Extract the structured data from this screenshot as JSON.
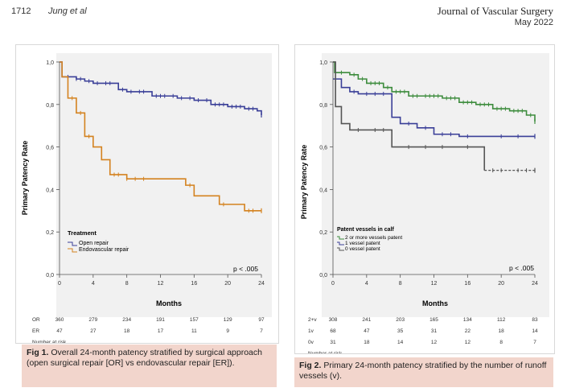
{
  "header": {
    "page_number": "1712",
    "authors": "Jung et al",
    "journal": "Journal of Vascular Surgery",
    "date": "May 2022"
  },
  "figure1": {
    "caption_label": "Fig 1.",
    "caption_text": "Overall 24-month patency stratified by surgical approach (open surgical repair [OR] vs endovascular repair [ER]).",
    "number_at_risk_label": "Number at risk",
    "risk_rows": [
      {
        "label": "OR",
        "values": [
          "360",
          "279",
          "234",
          "191",
          "157",
          "129",
          "97"
        ]
      },
      {
        "label": "ER",
        "values": [
          "47",
          "27",
          "18",
          "17",
          "11",
          "9",
          "7"
        ]
      }
    ]
  },
  "figure2": {
    "caption_label": "Fig 2.",
    "caption_text": "Primary 24-month patency stratified by the number of runoff vessels (v).",
    "number_at_risk_label": "Number at risk",
    "risk_rows": [
      {
        "label": "2+v",
        "values": [
          "308",
          "241",
          "203",
          "165",
          "134",
          "112",
          "83"
        ]
      },
      {
        "label": "1v",
        "values": [
          "68",
          "47",
          "35",
          "31",
          "22",
          "18",
          "14"
        ]
      },
      {
        "label": "0v",
        "values": [
          "31",
          "18",
          "14",
          "12",
          "12",
          "8",
          "7"
        ]
      }
    ]
  },
  "chart_data": [
    {
      "type": "line",
      "subtype": "kaplan-meier",
      "title": "",
      "xlabel": "Months",
      "ylabel": "Primary Patency Rate",
      "xlim": [
        0,
        24
      ],
      "ylim": [
        0,
        1
      ],
      "xticks": [
        "0",
        "4",
        "8",
        "12",
        "16",
        "20",
        "24"
      ],
      "yticks": [
        "0,0",
        "0,2",
        "0,4",
        "0,6",
        "0,8",
        "1,0"
      ],
      "legend_title": "Treatment",
      "annotation": "p < .005",
      "series": [
        {
          "name": "Open repair",
          "color": "#3a3f98",
          "steps": [
            [
              0,
              1.0
            ],
            [
              0.3,
              0.93
            ],
            [
              2,
              0.92
            ],
            [
              3,
              0.91
            ],
            [
              4,
              0.9
            ],
            [
              7,
              0.87
            ],
            [
              8,
              0.86
            ],
            [
              11,
              0.84
            ],
            [
              14,
              0.83
            ],
            [
              16,
              0.82
            ],
            [
              18,
              0.8
            ],
            [
              20,
              0.79
            ],
            [
              22,
              0.78
            ],
            [
              23.5,
              0.77
            ],
            [
              24,
              0.75
            ]
          ],
          "censors": [
            1,
            2,
            2.5,
            3.5,
            4.5,
            5.5,
            6,
            7.5,
            8.5,
            9.5,
            10,
            11.5,
            12,
            12.5,
            13.5,
            14.5,
            15.5,
            16.5,
            17.5,
            18.5,
            19,
            19.5,
            20.5,
            21,
            21.5,
            22.5,
            23
          ]
        },
        {
          "name": "Endovascular repair",
          "color": "#d4821f",
          "steps": [
            [
              0,
              1.0
            ],
            [
              0.3,
              0.93
            ],
            [
              1,
              0.83
            ],
            [
              2,
              0.76
            ],
            [
              3,
              0.65
            ],
            [
              4,
              0.6
            ],
            [
              5,
              0.54
            ],
            [
              6,
              0.47
            ],
            [
              8,
              0.45
            ],
            [
              15,
              0.42
            ],
            [
              16,
              0.37
            ],
            [
              19,
              0.33
            ],
            [
              22,
              0.3
            ],
            [
              24,
              0.3
            ]
          ],
          "censors": [
            1.5,
            2.5,
            3.5,
            6.5,
            7,
            8,
            9,
            10,
            15.5,
            19.5,
            22.5,
            23,
            24
          ]
        }
      ]
    },
    {
      "type": "line",
      "subtype": "kaplan-meier",
      "title": "",
      "xlabel": "Months",
      "ylabel": "Primary Patency Rate",
      "xlim": [
        0,
        24
      ],
      "ylim": [
        0,
        1
      ],
      "xticks": [
        "0",
        "4",
        "8",
        "12",
        "16",
        "20",
        "24"
      ],
      "yticks": [
        "0,0",
        "0,2",
        "0,4",
        "0,6",
        "0,8",
        "1,0"
      ],
      "legend_title": "Patent vessels in calf",
      "annotation": "p < .005",
      "series": [
        {
          "name": "2 or more vessels patent",
          "color": "#3d8c3d",
          "steps": [
            [
              0,
              1.0
            ],
            [
              0.2,
              0.95
            ],
            [
              2,
              0.94
            ],
            [
              3,
              0.92
            ],
            [
              4,
              0.9
            ],
            [
              6,
              0.88
            ],
            [
              7,
              0.86
            ],
            [
              9,
              0.84
            ],
            [
              13,
              0.83
            ],
            [
              15,
              0.81
            ],
            [
              17,
              0.8
            ],
            [
              19,
              0.78
            ],
            [
              21,
              0.77
            ],
            [
              23,
              0.75
            ],
            [
              24,
              0.72
            ]
          ],
          "censors": [
            1,
            2.5,
            3.5,
            4.5,
            5,
            5.5,
            6.5,
            7.5,
            8,
            8.5,
            9.5,
            10,
            11,
            11.5,
            12,
            12.5,
            13.5,
            14,
            14.5,
            15.5,
            16,
            16.5,
            17.5,
            18,
            18.5,
            19.5,
            20,
            20.5,
            21.5,
            22,
            22.5,
            23.5
          ]
        },
        {
          "name": "1 vessel patent",
          "color": "#3a3f98",
          "steps": [
            [
              0,
              0.92
            ],
            [
              1,
              0.88
            ],
            [
              2,
              0.86
            ],
            [
              3,
              0.85
            ],
            [
              7,
              0.74
            ],
            [
              8,
              0.71
            ],
            [
              10,
              0.69
            ],
            [
              12,
              0.66
            ],
            [
              15,
              0.65
            ],
            [
              24,
              0.65
            ]
          ],
          "censors": [
            2.5,
            4,
            5,
            6,
            9,
            11,
            13,
            14,
            16,
            20,
            22,
            24
          ]
        },
        {
          "name": "0 vessel patent",
          "color": "#555555",
          "steps": [
            [
              0,
              1.0
            ],
            [
              0.3,
              0.79
            ],
            [
              1,
              0.71
            ],
            [
              2,
              0.68
            ],
            [
              7,
              0.6
            ],
            [
              18,
              0.49
            ],
            [
              24,
              0.49
            ]
          ],
          "censors": [
            3,
            5,
            6,
            9,
            11,
            13,
            16,
            19,
            20,
            22,
            23
          ],
          "dashed_from": 18
        }
      ]
    }
  ]
}
